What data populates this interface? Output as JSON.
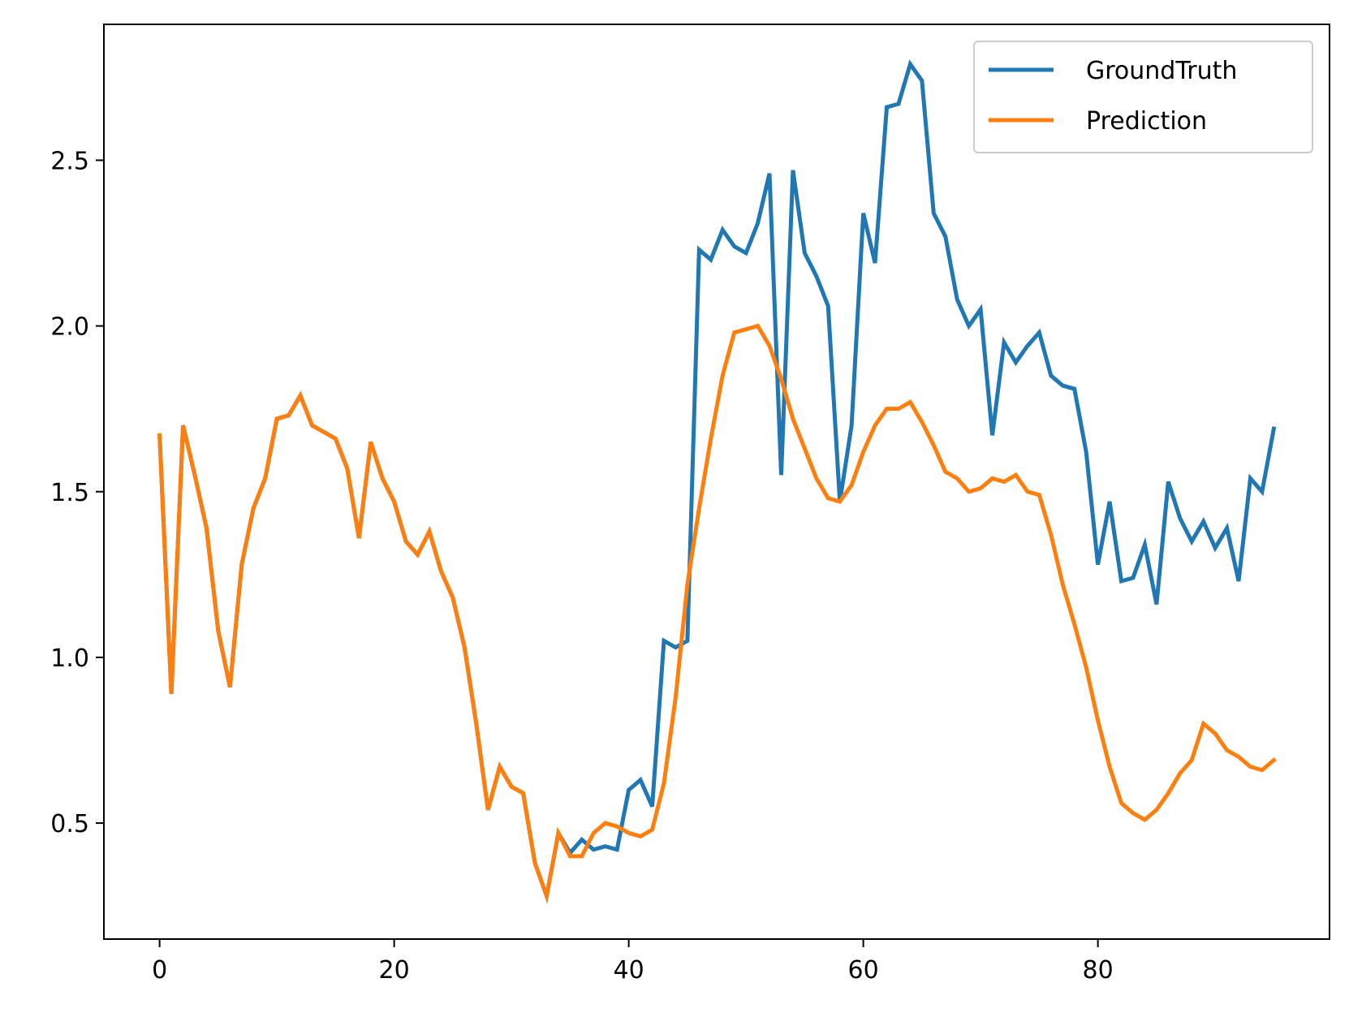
{
  "chart_data": {
    "type": "line",
    "title": "",
    "xlabel": "",
    "ylabel": "",
    "xlim": [
      -4.75,
      99.75
    ],
    "ylim": [
      0.15,
      2.91
    ],
    "xticks": [
      0,
      20,
      40,
      60,
      80
    ],
    "xtick_labels": [
      "0",
      "20",
      "40",
      "60",
      "80"
    ],
    "yticks": [
      0.5,
      1.0,
      1.5,
      2.0,
      2.5
    ],
    "ytick_labels": [
      "0.5",
      "1.0",
      "1.5",
      "2.0",
      "2.5"
    ],
    "grid": false,
    "legend_position": "top-right",
    "series": [
      {
        "name": "GroundTruth",
        "color": "#1f77b4",
        "values": [
          1.67,
          0.89,
          1.7,
          1.55,
          1.39,
          1.08,
          0.91,
          1.28,
          1.45,
          1.54,
          1.72,
          1.73,
          1.79,
          1.7,
          1.68,
          1.66,
          1.57,
          1.36,
          1.65,
          1.54,
          1.47,
          1.35,
          1.31,
          1.38,
          1.26,
          1.18,
          1.03,
          0.8,
          0.54,
          0.67,
          0.61,
          0.59,
          0.38,
          0.28,
          0.47,
          0.41,
          0.45,
          0.42,
          0.43,
          0.42,
          0.6,
          0.63,
          0.55,
          1.05,
          1.03,
          1.05,
          2.23,
          2.2,
          2.29,
          2.24,
          2.22,
          2.31,
          2.46,
          1.55,
          2.47,
          2.22,
          2.15,
          2.06,
          1.47,
          1.7,
          2.34,
          2.19,
          2.66,
          2.67,
          2.79,
          2.74,
          2.34,
          2.27,
          2.08,
          2.0,
          2.05,
          1.67,
          1.95,
          1.89,
          1.94,
          1.98,
          1.85,
          1.82,
          1.81,
          1.62,
          1.28,
          1.47,
          1.23,
          1.24,
          1.34,
          1.16,
          1.53,
          1.42,
          1.35,
          1.41,
          1.33,
          1.39,
          1.23,
          1.54,
          1.5,
          1.69
        ]
      },
      {
        "name": "Prediction",
        "color": "#ff7f0e",
        "values": [
          1.67,
          0.89,
          1.7,
          1.55,
          1.39,
          1.08,
          0.91,
          1.28,
          1.45,
          1.54,
          1.72,
          1.73,
          1.79,
          1.7,
          1.68,
          1.66,
          1.57,
          1.36,
          1.65,
          1.54,
          1.47,
          1.35,
          1.31,
          1.38,
          1.26,
          1.18,
          1.03,
          0.8,
          0.54,
          0.67,
          0.61,
          0.59,
          0.38,
          0.28,
          0.47,
          0.4,
          0.4,
          0.47,
          0.5,
          0.49,
          0.47,
          0.46,
          0.48,
          0.62,
          0.88,
          1.22,
          1.45,
          1.66,
          1.85,
          1.98,
          1.99,
          2.0,
          1.94,
          1.84,
          1.72,
          1.63,
          1.54,
          1.48,
          1.47,
          1.52,
          1.62,
          1.7,
          1.75,
          1.75,
          1.77,
          1.71,
          1.64,
          1.56,
          1.54,
          1.5,
          1.51,
          1.54,
          1.53,
          1.55,
          1.5,
          1.49,
          1.37,
          1.22,
          1.1,
          0.97,
          0.81,
          0.67,
          0.56,
          0.53,
          0.51,
          0.54,
          0.59,
          0.65,
          0.69,
          0.8,
          0.77,
          0.72,
          0.7,
          0.67,
          0.66,
          0.69
        ]
      }
    ]
  }
}
